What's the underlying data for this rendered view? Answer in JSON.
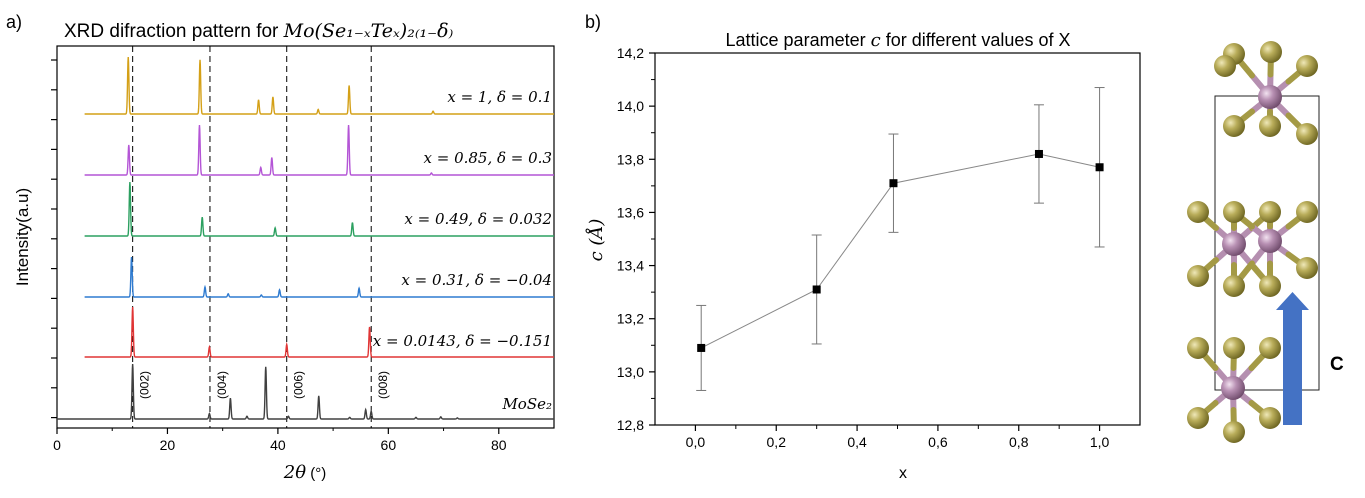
{
  "panel_a": {
    "label": "a)",
    "title_text": "XRD difraction pattern for ",
    "title_formula": "Mo(Se₁₋ₓTeₓ)₂₍₁₋δ₎",
    "ylabel": "Intensity(a.u)",
    "xlabel_math": "2θ",
    "xlabel_unit": " (°)"
  },
  "panel_b": {
    "label": "b)",
    "title_pre": "Lattice parameter ",
    "title_var": "c",
    "title_post": " for different values of X",
    "ylabel": "c (Å)",
    "xlabel": "x"
  },
  "panel_c": {
    "arrow_label": "C",
    "colors": {
      "mo": "#b58fb0",
      "se": "#a49a45",
      "arrow": "#4472c4"
    }
  },
  "chart_data": [
    {
      "type": "line",
      "title": "XRD difraction pattern for Mo(Se1-xTex)2(1-δ)",
      "xlabel": "2θ (°)",
      "ylabel": "Intensity(a.u)",
      "xlim": [
        0,
        90
      ],
      "xticks": [
        "0",
        "20",
        "40",
        "60",
        "80"
      ],
      "dashed_lines_x": [
        13.7,
        27.7,
        41.6,
        56.9
      ],
      "peak_labels": [
        {
          "text": "(002)",
          "x": 13.7
        },
        {
          "text": "(004)",
          "x": 27.7
        },
        {
          "text": "(006)",
          "x": 41.6
        },
        {
          "text": "(008)",
          "x": 56.9
        }
      ],
      "series": [
        {
          "name": "x = 1, δ = 0.1",
          "color": "#d4a017",
          "xrange": [
            5,
            90
          ],
          "peaks": [
            [
              12.9,
              1.0
            ],
            [
              25.9,
              0.95
            ],
            [
              36.5,
              0.25
            ],
            [
              39.1,
              0.3
            ],
            [
              47.3,
              0.08
            ],
            [
              52.9,
              0.5
            ],
            [
              68.1,
              0.05
            ]
          ]
        },
        {
          "name": "x = 0.85, δ = 0.3",
          "color": "#b455d6",
          "xrange": [
            5,
            90
          ],
          "peaks": [
            [
              13.0,
              0.6
            ],
            [
              25.8,
              1.0
            ],
            [
              36.9,
              0.15
            ],
            [
              38.9,
              0.35
            ],
            [
              52.8,
              1.0
            ],
            [
              67.8,
              0.04
            ]
          ]
        },
        {
          "name": "x = 0.49, δ = 0.032",
          "color": "#2ca060",
          "xrange": [
            5,
            90
          ],
          "peaks": [
            [
              13.2,
              1.0
            ],
            [
              26.3,
              0.35
            ],
            [
              39.5,
              0.15
            ],
            [
              53.5,
              0.25
            ]
          ]
        },
        {
          "name": "x = 0.31, δ = −0.04",
          "color": "#2f7bd0",
          "xrange": [
            5,
            90
          ],
          "peaks": [
            [
              13.5,
              1.0
            ],
            [
              26.8,
              0.25
            ],
            [
              31.0,
              0.08
            ],
            [
              37.0,
              0.05
            ],
            [
              40.3,
              0.18
            ],
            [
              54.7,
              0.22
            ]
          ]
        },
        {
          "name": "x = 0.0143, δ = −0.151",
          "color": "#e03535",
          "xrange": [
            5,
            90
          ],
          "peaks": [
            [
              13.7,
              1.0
            ],
            [
              27.6,
              0.2
            ],
            [
              41.6,
              0.25
            ],
            [
              56.6,
              0.6
            ]
          ]
        },
        {
          "name": "MoSe₂",
          "color": "#404040",
          "xrange": [
            0,
            90
          ],
          "peaks": [
            [
              13.7,
              1.0
            ],
            [
              27.6,
              0.1
            ],
            [
              31.4,
              0.38
            ],
            [
              34.4,
              0.05
            ],
            [
              37.8,
              0.95
            ],
            [
              41.9,
              0.05
            ],
            [
              47.4,
              0.42
            ],
            [
              53.0,
              0.03
            ],
            [
              55.9,
              0.17
            ],
            [
              56.9,
              0.14
            ],
            [
              65.0,
              0.03
            ],
            [
              69.5,
              0.04
            ],
            [
              72.5,
              0.02
            ]
          ]
        }
      ]
    },
    {
      "type": "scatter",
      "title": "Lattice parameter c for different values of X",
      "xlabel": "x",
      "ylabel": "c (Å)",
      "xlim": [
        -0.1,
        1.1
      ],
      "ylim": [
        12.8,
        14.2
      ],
      "xticks": [
        "0,0",
        "0,2",
        "0,4",
        "0,6",
        "0,8",
        "1,0"
      ],
      "yticks": [
        "12,8",
        "13,0",
        "13,2",
        "13,4",
        "13,6",
        "13,8",
        "14,0",
        "14,2"
      ],
      "series": [
        {
          "x": [
            0.0143,
            0.3,
            0.49,
            0.85,
            1.0
          ],
          "y": [
            13.09,
            13.31,
            13.71,
            13.82,
            13.77
          ],
          "err_low": [
            12.93,
            13.105,
            13.525,
            13.635,
            13.47
          ],
          "err_high": [
            13.25,
            13.515,
            13.895,
            14.005,
            14.07
          ]
        }
      ]
    }
  ]
}
